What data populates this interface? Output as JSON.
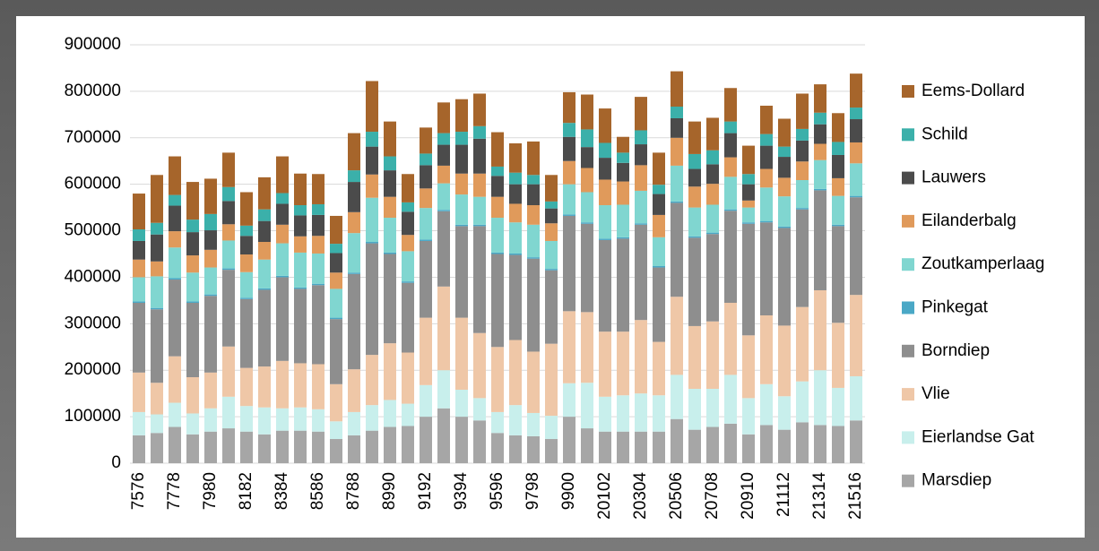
{
  "chart_data": {
    "type": "stacked-bar",
    "categories": [
      "7576",
      null,
      "7778",
      null,
      "7980",
      null,
      "8182",
      null,
      "8384",
      null,
      "8586",
      null,
      "8788",
      null,
      "8990",
      null,
      "9192",
      null,
      "9394",
      null,
      "9596",
      null,
      "9798",
      null,
      "9900",
      null,
      "20102",
      null,
      "20304",
      null,
      "20506",
      null,
      "20708",
      null,
      "20910",
      null,
      "21112",
      null,
      "21314",
      null,
      "21516"
    ],
    "series": [
      {
        "name": "Marsdiep",
        "color": "#a6a6a6",
        "values": [
          60000,
          65000,
          78000,
          62000,
          68000,
          75000,
          68000,
          62000,
          70000,
          70000,
          68000,
          52000,
          60000,
          70000,
          78000,
          80000,
          100000,
          118000,
          100000,
          92000,
          65000,
          60000,
          58000,
          52000,
          100000,
          75000,
          68000,
          68000,
          68000,
          68000,
          95000,
          72000,
          78000,
          85000,
          62000,
          82000,
          72000,
          88000,
          82000,
          80000,
          92000
        ]
      },
      {
        "name": "Eierlandse Gat",
        "color": "#c8efec",
        "values": [
          50000,
          40000,
          52000,
          45000,
          50000,
          68000,
          55000,
          58000,
          48000,
          50000,
          48000,
          38000,
          50000,
          55000,
          58000,
          48000,
          68000,
          82000,
          58000,
          48000,
          45000,
          65000,
          50000,
          50000,
          72000,
          98000,
          75000,
          78000,
          82000,
          78000,
          95000,
          88000,
          82000,
          105000,
          78000,
          88000,
          72000,
          88000,
          118000,
          82000,
          95000
        ]
      },
      {
        "name": "Vlie",
        "color": "#efc7a7",
        "values": [
          85000,
          68000,
          100000,
          78000,
          77000,
          108000,
          82000,
          88000,
          102000,
          95000,
          97000,
          80000,
          92000,
          108000,
          122000,
          110000,
          145000,
          180000,
          155000,
          140000,
          140000,
          140000,
          132000,
          155000,
          155000,
          152000,
          140000,
          137000,
          158000,
          115000,
          168000,
          135000,
          145000,
          155000,
          135000,
          148000,
          152000,
          160000,
          172000,
          140000,
          175000
        ]
      },
      {
        "name": "Borndiep",
        "color": "#8e8e8e",
        "values": [
          150000,
          158000,
          165000,
          160000,
          165000,
          165000,
          148000,
          165000,
          180000,
          160000,
          170000,
          140000,
          205000,
          240000,
          192000,
          150000,
          165000,
          162000,
          197000,
          230000,
          200000,
          183000,
          200000,
          158000,
          205000,
          190000,
          197000,
          200000,
          205000,
          160000,
          202000,
          190000,
          188000,
          198000,
          240000,
          200000,
          210000,
          210000,
          215000,
          208000,
          210000
        ]
      },
      {
        "name": "Pinkegat",
        "color": "#4aa8c6",
        "values": [
          3000,
          3000,
          3000,
          3000,
          3000,
          3000,
          3000,
          3000,
          3000,
          3000,
          3000,
          3000,
          3000,
          3000,
          3000,
          3000,
          3000,
          3000,
          3000,
          3000,
          3000,
          3000,
          3000,
          3000,
          3000,
          3000,
          3000,
          3000,
          3000,
          3000,
          3000,
          3000,
          3000,
          3000,
          3000,
          3000,
          3000,
          3000,
          3000,
          3000,
          3000
        ]
      },
      {
        "name": "Zoutkamperlaag",
        "color": "#80d6d0",
        "values": [
          52000,
          68000,
          66000,
          62000,
          58000,
          60000,
          55000,
          62000,
          70000,
          75000,
          65000,
          62000,
          85000,
          95000,
          75000,
          65000,
          68000,
          57000,
          65000,
          60000,
          75000,
          67000,
          70000,
          60000,
          65000,
          65000,
          72000,
          70000,
          70000,
          62000,
          77000,
          62000,
          60000,
          70000,
          32000,
          72000,
          65000,
          60000,
          62000,
          62000,
          70000
        ]
      },
      {
        "name": "Eilanderbalg",
        "color": "#e09a5b",
        "values": [
          38000,
          32000,
          35000,
          37000,
          38000,
          35000,
          38000,
          38000,
          40000,
          35000,
          38000,
          35000,
          45000,
          50000,
          45000,
          35000,
          42000,
          38000,
          45000,
          50000,
          45000,
          40000,
          42000,
          38000,
          50000,
          52000,
          55000,
          50000,
          55000,
          48000,
          60000,
          45000,
          45000,
          42000,
          15000,
          40000,
          40000,
          40000,
          35000,
          38000,
          45000
        ]
      },
      {
        "name": "Lauwers",
        "color": "#4b4b4b",
        "values": [
          40000,
          58000,
          55000,
          50000,
          42000,
          50000,
          40000,
          45000,
          45000,
          45000,
          45000,
          42000,
          65000,
          60000,
          57000,
          50000,
          50000,
          45000,
          62000,
          75000,
          45000,
          42000,
          45000,
          32000,
          52000,
          45000,
          47000,
          40000,
          45000,
          45000,
          42000,
          38000,
          42000,
          52000,
          35000,
          50000,
          45000,
          45000,
          42000,
          50000,
          50000
        ]
      },
      {
        "name": "Schild",
        "color": "#3bb0aa",
        "values": [
          25000,
          25000,
          23000,
          27000,
          35000,
          30000,
          22000,
          25000,
          23000,
          22000,
          23000,
          20000,
          25000,
          32000,
          30000,
          20000,
          25000,
          25000,
          28000,
          27000,
          20000,
          25000,
          20000,
          15000,
          30000,
          38000,
          32000,
          22000,
          30000,
          20000,
          25000,
          32000,
          30000,
          25000,
          22000,
          25000,
          22000,
          25000,
          25000,
          28000,
          25000
        ]
      },
      {
        "name": "Eems-Dollard",
        "color": "#a6652b",
        "values": [
          77000,
          103000,
          83000,
          81000,
          76000,
          74000,
          72000,
          69000,
          79000,
          68000,
          65000,
          60000,
          80000,
          109000,
          75000,
          61000,
          56000,
          66000,
          70000,
          70000,
          74000,
          63000,
          72000,
          57000,
          66000,
          75000,
          74000,
          34000,
          72000,
          69000,
          76000,
          70000,
          70000,
          72000,
          61000,
          61000,
          60000,
          76000,
          61000,
          62000,
          73000
        ]
      }
    ],
    "ylim": [
      0,
      900000
    ],
    "yticks": [
      0,
      100000,
      200000,
      300000,
      400000,
      500000,
      600000,
      700000,
      800000,
      900000
    ],
    "grid": true
  }
}
